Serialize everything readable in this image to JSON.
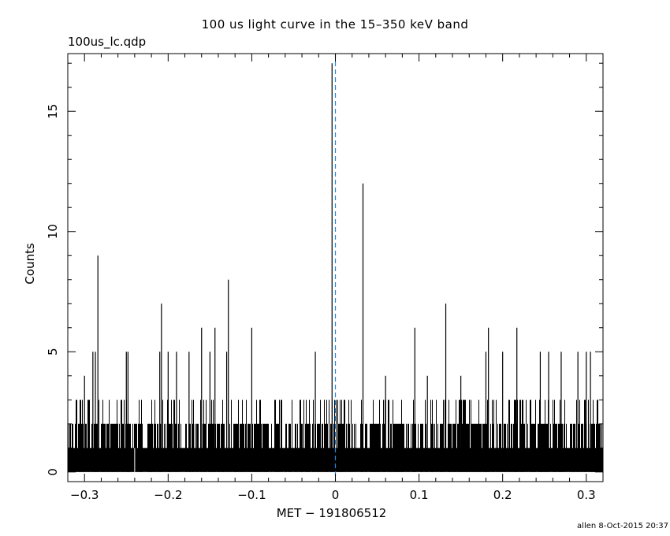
{
  "figure": {
    "title": "100 us light curve in the 15–350 keV band",
    "file_label": "100us_lc.qdp",
    "footer": "allen  8-Oct-2015 20:37"
  },
  "chart_data": {
    "type": "bar",
    "xlabel": "MET − 191806512",
    "ylabel": "Counts",
    "xlim": [
      -0.32,
      0.32
    ],
    "ylim": [
      -0.4,
      17.4
    ],
    "grid": false,
    "x_ticks": [
      -0.3,
      -0.2,
      -0.1,
      0,
      0.1,
      0.2,
      0.3
    ],
    "x_tick_labels": [
      "−0.3",
      "−0.2",
      "−0.1",
      "0",
      "0.1",
      "0.2",
      "0.3"
    ],
    "y_ticks": [
      0,
      5,
      10,
      15
    ],
    "y_tick_labels": [
      "0",
      "5",
      "10",
      "15"
    ],
    "reference_line": {
      "x": 0,
      "style": "dashed",
      "color": "#1e88e5"
    },
    "bar_color": "#000000",
    "background_level": "dense bins of 0–3 counts across the full range",
    "peaks": [
      {
        "x": -0.3,
        "y": 4
      },
      {
        "x": -0.29,
        "y": 5
      },
      {
        "x": -0.287,
        "y": 5
      },
      {
        "x": -0.284,
        "y": 9
      },
      {
        "x": -0.25,
        "y": 5
      },
      {
        "x": -0.248,
        "y": 5
      },
      {
        "x": -0.21,
        "y": 5
      },
      {
        "x": -0.208,
        "y": 7
      },
      {
        "x": -0.2,
        "y": 5
      },
      {
        "x": -0.19,
        "y": 5
      },
      {
        "x": -0.175,
        "y": 5
      },
      {
        "x": -0.16,
        "y": 6
      },
      {
        "x": -0.15,
        "y": 5
      },
      {
        "x": -0.144,
        "y": 6
      },
      {
        "x": -0.13,
        "y": 5
      },
      {
        "x": -0.128,
        "y": 8
      },
      {
        "x": -0.1,
        "y": 6
      },
      {
        "x": -0.024,
        "y": 5
      },
      {
        "x": -0.004,
        "y": 17
      },
      {
        "x": 0.033,
        "y": 12
      },
      {
        "x": 0.06,
        "y": 4
      },
      {
        "x": 0.095,
        "y": 6
      },
      {
        "x": 0.11,
        "y": 4
      },
      {
        "x": 0.132,
        "y": 7
      },
      {
        "x": 0.15,
        "y": 4
      },
      {
        "x": 0.18,
        "y": 5
      },
      {
        "x": 0.183,
        "y": 6
      },
      {
        "x": 0.2,
        "y": 5
      },
      {
        "x": 0.217,
        "y": 6
      },
      {
        "x": 0.245,
        "y": 5
      },
      {
        "x": 0.255,
        "y": 5
      },
      {
        "x": 0.27,
        "y": 5
      },
      {
        "x": 0.29,
        "y": 5
      },
      {
        "x": 0.3,
        "y": 5
      },
      {
        "x": 0.305,
        "y": 5
      }
    ]
  }
}
